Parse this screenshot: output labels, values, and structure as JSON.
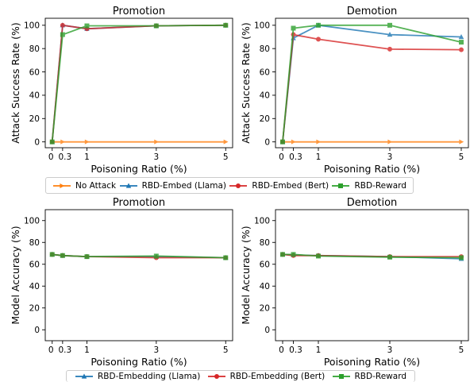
{
  "colors": {
    "no_attack": "#ff7f0e",
    "embed_llama": "#1f77b4",
    "embed_bert": "#d62728",
    "reward": "#2ca02c"
  },
  "chart_data": [
    {
      "type": "line",
      "title": "Promotion",
      "xlabel": "Poisoning Ratio (%)",
      "ylabel": "Attack Success Rate (%)",
      "x": [
        0,
        0.3,
        1,
        3,
        5
      ],
      "x_tick_labels": [
        "0",
        "0.3",
        "1",
        "3",
        "5"
      ],
      "xlim": [
        -0.2,
        5.2
      ],
      "ylim": [
        -5,
        106
      ],
      "y_ticks": [
        0,
        20,
        40,
        60,
        80,
        100
      ],
      "series": [
        {
          "name": "No Attack",
          "color_key": "no_attack",
          "marker": "arrow-right",
          "values": [
            0,
            0,
            0,
            0,
            0
          ]
        },
        {
          "name": "RBD-Embed (Llama)",
          "color_key": "embed_llama",
          "marker": "triangle",
          "values": [
            0,
            100,
            97,
            99.5,
            100
          ]
        },
        {
          "name": "RBD-Embed (Bert)",
          "color_key": "embed_bert",
          "marker": "circle",
          "values": [
            0,
            100,
            97,
            99.5,
            100
          ]
        },
        {
          "name": "RBD-Reward",
          "color_key": "reward",
          "marker": "square",
          "values": [
            0,
            92,
            99.5,
            99.5,
            100
          ]
        }
      ]
    },
    {
      "type": "line",
      "title": "Demotion",
      "xlabel": "Poisoning Ratio (%)",
      "ylabel": "Attack Success Rate (%)",
      "x": [
        0,
        0.3,
        1,
        3,
        5
      ],
      "x_tick_labels": [
        "0",
        "0.3",
        "1",
        "3",
        "5"
      ],
      "xlim": [
        -0.2,
        5.2
      ],
      "ylim": [
        -5,
        106
      ],
      "y_ticks": [
        0,
        20,
        40,
        60,
        80,
        100
      ],
      "series": [
        {
          "name": "No Attack",
          "color_key": "no_attack",
          "marker": "arrow-right",
          "values": [
            0,
            0,
            0,
            0,
            0
          ]
        },
        {
          "name": "RBD-Embed (Llama)",
          "color_key": "embed_llama",
          "marker": "triangle",
          "values": [
            0,
            89,
            100,
            92,
            90
          ]
        },
        {
          "name": "RBD-Embed (Bert)",
          "color_key": "embed_bert",
          "marker": "circle",
          "values": [
            0,
            92,
            88,
            79.5,
            79
          ]
        },
        {
          "name": "RBD-Reward",
          "color_key": "reward",
          "marker": "square",
          "values": [
            0,
            97.5,
            100,
            100,
            85.5
          ]
        }
      ]
    },
    {
      "type": "line",
      "title": "Promotion",
      "xlabel": "Poisoning Ratio (%)",
      "ylabel": "Model Accuracy (%)",
      "x": [
        0,
        0.3,
        1,
        3,
        5
      ],
      "x_tick_labels": [
        "0",
        "0.3",
        "1",
        "3",
        "5"
      ],
      "xlim": [
        -0.2,
        5.2
      ],
      "ylim": [
        -10,
        110
      ],
      "y_ticks": [
        0,
        20,
        40,
        60,
        80,
        100
      ],
      "series": [
        {
          "name": "RBD-Embedding (Llama)",
          "color_key": "embed_llama",
          "marker": "triangle",
          "values": [
            69,
            68,
            67,
            67,
            66
          ]
        },
        {
          "name": "RBD-Embedding (Bert)",
          "color_key": "embed_bert",
          "marker": "circle",
          "values": [
            69,
            68,
            67,
            66,
            66
          ]
        },
        {
          "name": "RBD-Reward",
          "color_key": "reward",
          "marker": "square",
          "values": [
            69,
            68,
            67,
            67.5,
            66
          ]
        }
      ]
    },
    {
      "type": "line",
      "title": "Demotion",
      "xlabel": "Poisoning Ratio (%)",
      "ylabel": "Model Accuracy (%)",
      "x": [
        0,
        0.3,
        1,
        3,
        5
      ],
      "x_tick_labels": [
        "0",
        "0.3",
        "1",
        "3",
        "5"
      ],
      "xlim": [
        -0.2,
        5.2
      ],
      "ylim": [
        -10,
        110
      ],
      "y_ticks": [
        0,
        20,
        40,
        60,
        80,
        100
      ],
      "series": [
        {
          "name": "RBD-Embedding (Llama)",
          "color_key": "embed_llama",
          "marker": "triangle",
          "values": [
            69,
            68.5,
            68,
            67,
            65
          ]
        },
        {
          "name": "RBD-Embedding (Bert)",
          "color_key": "embed_bert",
          "marker": "circle",
          "values": [
            69,
            68,
            68,
            67,
            67
          ]
        },
        {
          "name": "RBD-Reward",
          "color_key": "reward",
          "marker": "square",
          "values": [
            69,
            69,
            67.5,
            66.5,
            66
          ]
        }
      ]
    }
  ],
  "legend_top": [
    {
      "label": "No Attack",
      "color_key": "no_attack",
      "marker": "arrow-right"
    },
    {
      "label": "RBD-Embed (Llama)",
      "color_key": "embed_llama",
      "marker": "triangle"
    },
    {
      "label": "RBD-Embed (Bert)",
      "color_key": "embed_bert",
      "marker": "circle"
    },
    {
      "label": "RBD-Reward",
      "color_key": "reward",
      "marker": "square"
    }
  ],
  "legend_bottom": [
    {
      "label": "RBD-Embedding (Llama)",
      "color_key": "embed_llama",
      "marker": "triangle"
    },
    {
      "label": "RBD-Embedding (Bert)",
      "color_key": "embed_bert",
      "marker": "circle"
    },
    {
      "label": "RBD-Reward",
      "color_key": "reward",
      "marker": "square"
    }
  ]
}
